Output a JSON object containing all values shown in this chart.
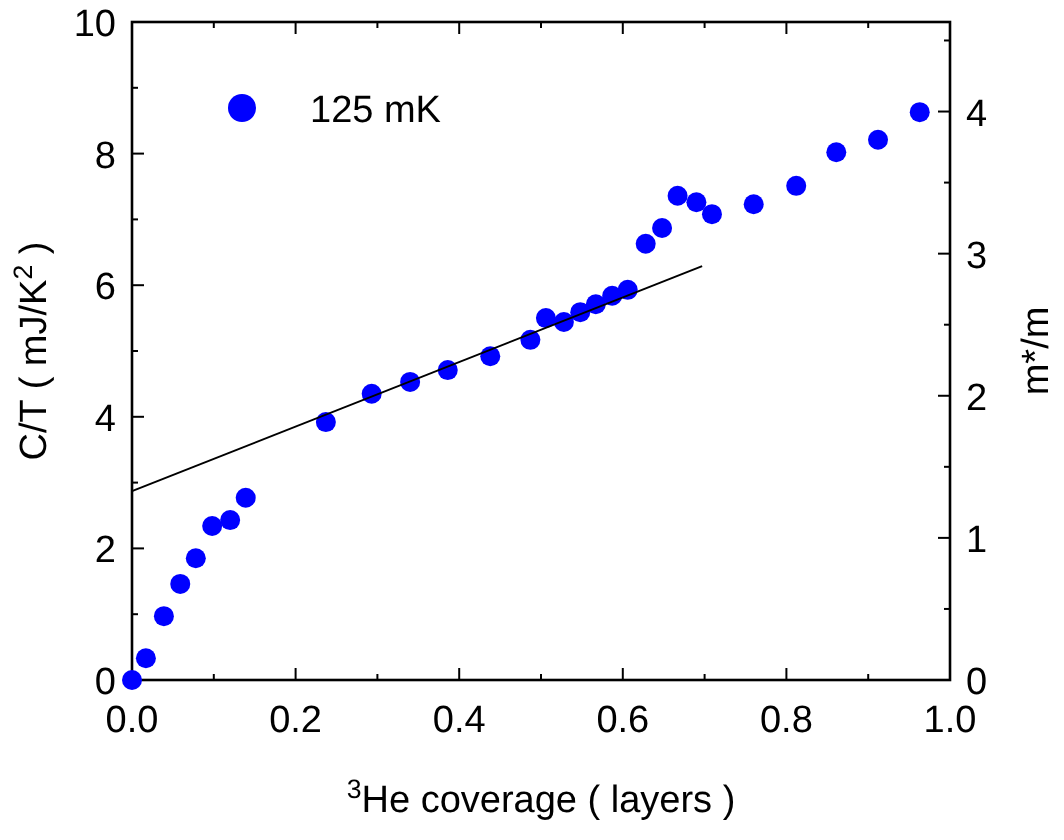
{
  "chart_data": {
    "type": "scatter",
    "xlabel": "$^{3}$He coverage ( layers )",
    "ylabel": "C/T ( mJ/K$^{2}$ )",
    "y2label": "m*/m",
    "xlim": [
      0,
      1
    ],
    "xticks": [
      {
        "value": 0,
        "label": "0.0"
      },
      {
        "value": 0.1,
        "label": null
      },
      {
        "value": 0.2,
        "label": "0.2"
      },
      {
        "value": 0.3,
        "label": null
      },
      {
        "value": 0.4,
        "label": "0.4"
      },
      {
        "value": 0.5,
        "label": null
      },
      {
        "value": 0.6,
        "label": "0.6"
      },
      {
        "value": 0.7,
        "label": null
      },
      {
        "value": 0.8,
        "label": "0.8"
      },
      {
        "value": 0.9,
        "label": null
      },
      {
        "value": 1.0,
        "label": "1.0"
      }
    ],
    "ylim": [
      0,
      10
    ],
    "yticks": [
      0,
      {
        "value": 1,
        "label": null
      },
      2,
      {
        "value": 3,
        "label": null
      },
      4,
      {
        "value": 5,
        "label": null
      },
      6,
      {
        "value": 7,
        "label": null
      },
      8,
      {
        "value": 9,
        "label": null
      },
      10
    ],
    "y2lim": [
      0,
      4.63
    ],
    "y2ticks": [
      0,
      {
        "value": 0.5,
        "label": null
      },
      1,
      {
        "value": 1.5,
        "label": null
      },
      2,
      {
        "value": 2.5,
        "label": null
      },
      3,
      {
        "value": 3.5,
        "label": null
      },
      4,
      {
        "value": 4.5,
        "label": null
      }
    ],
    "legend": "top left",
    "marker": "circle",
    "grid": false,
    "series": [
      {
        "name": "125 mK",
        "color": "#0000ff",
        "x": [
          0,
          0.017,
          0.039,
          0.059,
          0.078,
          0.098,
          0.12,
          0.139,
          0.237,
          0.293,
          0.34,
          0.386,
          0.438,
          0.487,
          0.506,
          0.528,
          0.548,
          0.567,
          0.587,
          0.606,
          0.628,
          0.648,
          0.667,
          0.69,
          0.709,
          0.76,
          0.812,
          0.861,
          0.912,
          0.963
        ],
        "values": [
          0,
          0.33,
          0.97,
          1.46,
          1.85,
          2.34,
          2.43,
          2.77,
          3.92,
          4.35,
          4.53,
          4.71,
          4.92,
          5.17,
          5.5,
          5.44,
          5.59,
          5.71,
          5.84,
          5.93,
          6.63,
          6.87,
          7.36,
          7.26,
          7.08,
          7.23,
          7.51,
          8.02,
          8.21,
          8.63
        ]
      },
      {
        "color": "#000000",
        "type": "line",
        "marker": "none",
        "line_style": "solid",
        "x": [
          0,
          0.697
        ],
        "values": [
          2.87,
          6.29
        ]
      }
    ]
  }
}
